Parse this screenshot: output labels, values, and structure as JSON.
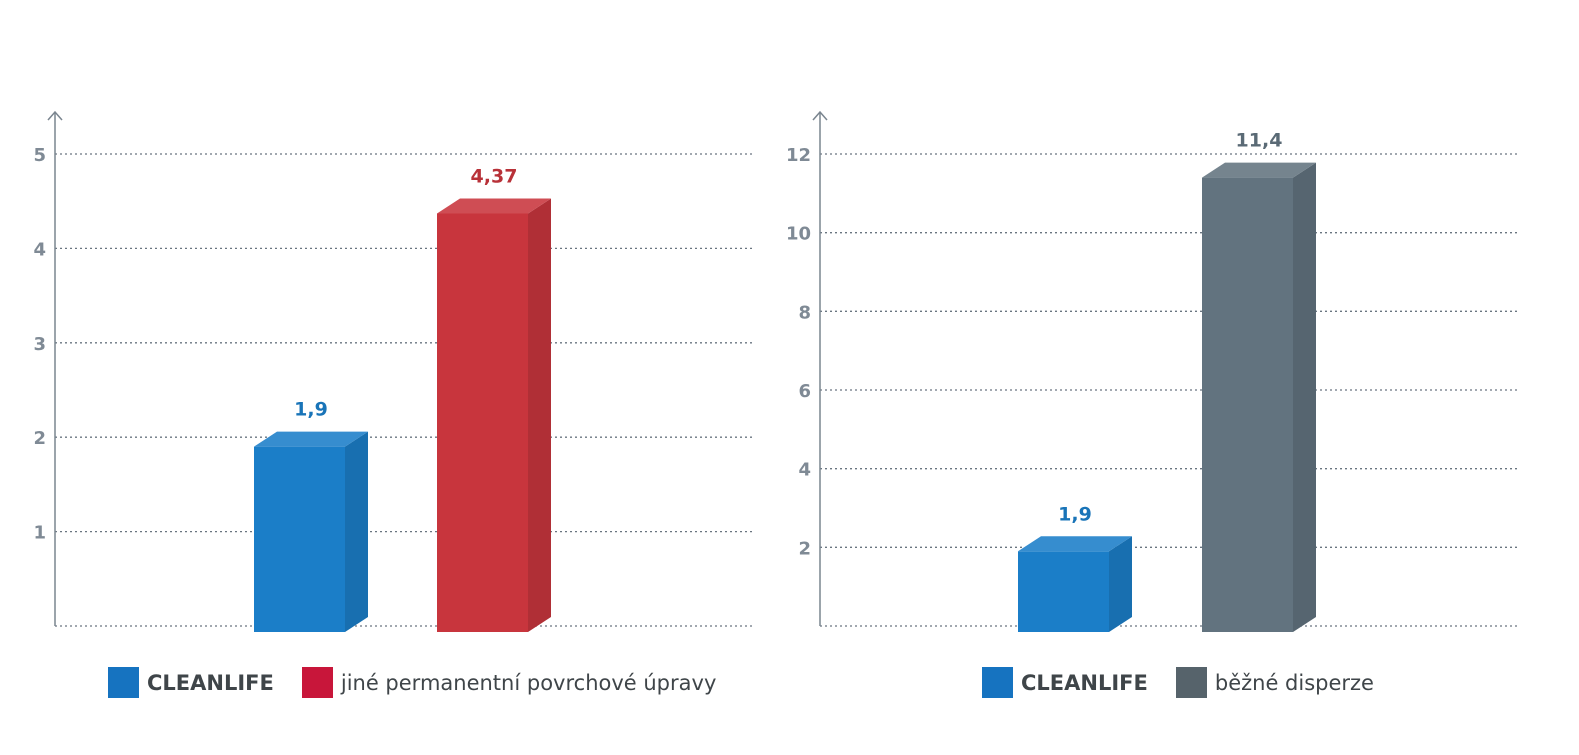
{
  "chart_data": [
    {
      "type": "bar",
      "categories": [
        "CLEANLIFE",
        "jiné permanentní povrchové úpravy"
      ],
      "values": [
        1.9,
        4.37
      ],
      "value_labels": [
        "1,9",
        "4,37"
      ],
      "colors": [
        "#1b7ec8",
        "#c8353d"
      ],
      "yticks": [
        1,
        2,
        3,
        4,
        5
      ],
      "ylim": [
        0,
        5
      ],
      "grid": true,
      "style": "3d",
      "legend": {
        "position": "bottom",
        "items": [
          {
            "label": "CLEANLIFE",
            "color": "#1673c0",
            "bold": true
          },
          {
            "label": "jiné permanentní povrchové úpravy",
            "color": "#c8163a",
            "bold": false
          }
        ]
      }
    },
    {
      "type": "bar",
      "categories": [
        "CLEANLIFE",
        "běžné disperze"
      ],
      "values": [
        1.9,
        11.4
      ],
      "value_labels": [
        "1,9",
        "11,4"
      ],
      "colors": [
        "#1b7ec8",
        "#62737f"
      ],
      "yticks": [
        2,
        4,
        6,
        8,
        10,
        12
      ],
      "ylim": [
        0,
        12
      ],
      "grid": true,
      "style": "3d",
      "legend": {
        "position": "bottom",
        "items": [
          {
            "label": "CLEANLIFE",
            "color": "#1673c0",
            "bold": true
          },
          {
            "label": "běžné disperze",
            "color": "#56636b",
            "bold": false
          }
        ]
      }
    }
  ]
}
